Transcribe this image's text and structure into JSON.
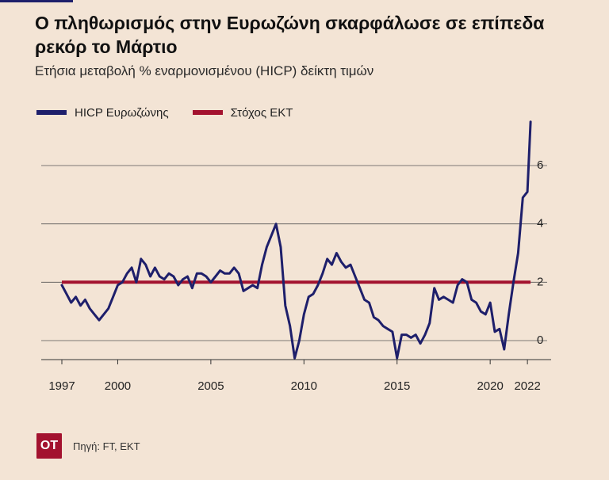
{
  "title": "Ο πληθωρισμός στην Ευρωζώνη σκαρφάλωσε σε επίπεδα ρεκόρ το Μάρτιο",
  "subtitle": "Ετήσια μεταβολή % εναρμονισμένου (HICP) δείκτη τιμών",
  "source": "Πηγή: FT, ΕΚΤ",
  "logo_text": "ΟΤ",
  "colors": {
    "background": "#f3e4d5",
    "hicp": "#1e1f6b",
    "target": "#a3122f",
    "grid": "#555555"
  },
  "chart_data": {
    "type": "line",
    "x_type": "year",
    "xlim": [
      1997,
      2022.25
    ],
    "ylim": [
      -0.7,
      7.8
    ],
    "x_ticks": [
      1997,
      2000,
      2005,
      2010,
      2015,
      2020,
      2022
    ],
    "y_ticks": [
      0,
      2,
      4,
      6
    ],
    "grid": "horizontal",
    "legend_position": "top-left",
    "series": [
      {
        "name": "HICP Ευρωζώνης",
        "color": "#1e1f6b",
        "points": [
          [
            1997.0,
            1.9
          ],
          [
            1997.25,
            1.6
          ],
          [
            1997.5,
            1.3
          ],
          [
            1997.75,
            1.5
          ],
          [
            1998.0,
            1.2
          ],
          [
            1998.25,
            1.4
          ],
          [
            1998.5,
            1.1
          ],
          [
            1998.75,
            0.9
          ],
          [
            1999.0,
            0.7
          ],
          [
            1999.25,
            0.9
          ],
          [
            1999.5,
            1.1
          ],
          [
            1999.75,
            1.5
          ],
          [
            2000.0,
            1.9
          ],
          [
            2000.25,
            2.0
          ],
          [
            2000.5,
            2.3
          ],
          [
            2000.75,
            2.5
          ],
          [
            2001.0,
            2.0
          ],
          [
            2001.25,
            2.8
          ],
          [
            2001.5,
            2.6
          ],
          [
            2001.75,
            2.2
          ],
          [
            2002.0,
            2.5
          ],
          [
            2002.25,
            2.2
          ],
          [
            2002.5,
            2.1
          ],
          [
            2002.75,
            2.3
          ],
          [
            2003.0,
            2.2
          ],
          [
            2003.25,
            1.9
          ],
          [
            2003.5,
            2.1
          ],
          [
            2003.75,
            2.2
          ],
          [
            2004.0,
            1.8
          ],
          [
            2004.25,
            2.3
          ],
          [
            2004.5,
            2.3
          ],
          [
            2004.75,
            2.2
          ],
          [
            2005.0,
            2.0
          ],
          [
            2005.25,
            2.2
          ],
          [
            2005.5,
            2.4
          ],
          [
            2005.75,
            2.3
          ],
          [
            2006.0,
            2.3
          ],
          [
            2006.25,
            2.5
          ],
          [
            2006.5,
            2.3
          ],
          [
            2006.75,
            1.7
          ],
          [
            2007.0,
            1.8
          ],
          [
            2007.25,
            1.9
          ],
          [
            2007.5,
            1.8
          ],
          [
            2007.75,
            2.6
          ],
          [
            2008.0,
            3.2
          ],
          [
            2008.25,
            3.6
          ],
          [
            2008.5,
            4.0
          ],
          [
            2008.75,
            3.2
          ],
          [
            2009.0,
            1.2
          ],
          [
            2009.25,
            0.5
          ],
          [
            2009.5,
            -0.6
          ],
          [
            2009.75,
            0.0
          ],
          [
            2010.0,
            0.9
          ],
          [
            2010.25,
            1.5
          ],
          [
            2010.5,
            1.6
          ],
          [
            2010.75,
            1.9
          ],
          [
            2011.0,
            2.3
          ],
          [
            2011.25,
            2.8
          ],
          [
            2011.5,
            2.6
          ],
          [
            2011.75,
            3.0
          ],
          [
            2012.0,
            2.7
          ],
          [
            2012.25,
            2.5
          ],
          [
            2012.5,
            2.6
          ],
          [
            2012.75,
            2.2
          ],
          [
            2013.0,
            1.8
          ],
          [
            2013.25,
            1.4
          ],
          [
            2013.5,
            1.3
          ],
          [
            2013.75,
            0.8
          ],
          [
            2014.0,
            0.7
          ],
          [
            2014.25,
            0.5
          ],
          [
            2014.5,
            0.4
          ],
          [
            2014.75,
            0.3
          ],
          [
            2015.0,
            -0.6
          ],
          [
            2015.25,
            0.2
          ],
          [
            2015.5,
            0.2
          ],
          [
            2015.75,
            0.1
          ],
          [
            2016.0,
            0.2
          ],
          [
            2016.25,
            -0.1
          ],
          [
            2016.5,
            0.2
          ],
          [
            2016.75,
            0.6
          ],
          [
            2017.0,
            1.8
          ],
          [
            2017.25,
            1.4
          ],
          [
            2017.5,
            1.5
          ],
          [
            2017.75,
            1.4
          ],
          [
            2018.0,
            1.3
          ],
          [
            2018.25,
            1.9
          ],
          [
            2018.5,
            2.1
          ],
          [
            2018.75,
            2.0
          ],
          [
            2019.0,
            1.4
          ],
          [
            2019.25,
            1.3
          ],
          [
            2019.5,
            1.0
          ],
          [
            2019.75,
            0.9
          ],
          [
            2020.0,
            1.3
          ],
          [
            2020.25,
            0.3
          ],
          [
            2020.5,
            0.4
          ],
          [
            2020.75,
            -0.3
          ],
          [
            2021.0,
            0.9
          ],
          [
            2021.25,
            2.0
          ],
          [
            2021.5,
            3.0
          ],
          [
            2021.75,
            4.9
          ],
          [
            2022.0,
            5.1
          ],
          [
            2022.17,
            7.5
          ]
        ]
      },
      {
        "name": "Στόχος ΕΚΤ",
        "color": "#a3122f",
        "points": [
          [
            1997.0,
            2.0
          ],
          [
            2022.17,
            2.0
          ]
        ]
      }
    ]
  }
}
